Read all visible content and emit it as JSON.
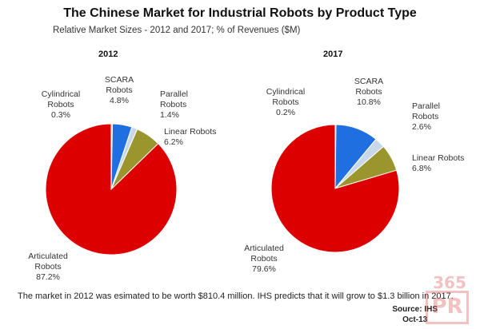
{
  "chart_data": {
    "type": "pie",
    "title": "The Chinese Market for Industrial Robots by Product Type",
    "subtitle": "Relative Market Sizes - 2012 and 2017; % of Revenues ($M)",
    "charts": [
      {
        "year": "2012",
        "slices": [
          {
            "name": "Cylindrical Robots",
            "value": 0.3,
            "label_lines": [
              "Cylindrical",
              "Robots",
              "0.3%"
            ],
            "color": "#c8d8e8"
          },
          {
            "name": "SCARA Robots",
            "value": 4.8,
            "label_lines": [
              "SCARA",
              "Robots",
              "4.8%"
            ],
            "color": "#1f6fe0"
          },
          {
            "name": "Parallel Robots",
            "value": 1.4,
            "label_lines": [
              "Parallel",
              "Robots",
              "1.4%"
            ],
            "color": "#c8d8e8"
          },
          {
            "name": "Linear Robots",
            "value": 6.2,
            "label_lines": [
              "Linear Robots",
              "6.2%"
            ],
            "color": "#9a962d"
          },
          {
            "name": "Articulated Robots",
            "value": 87.2,
            "label_lines": [
              "Articulated",
              "Robots",
              "87.2%"
            ],
            "color": "#dd0000"
          }
        ]
      },
      {
        "year": "2017",
        "slices": [
          {
            "name": "Cylindrical Robots",
            "value": 0.2,
            "label_lines": [
              "Cylindrical",
              "Robots",
              "0.2%"
            ],
            "color": "#c8d8e8"
          },
          {
            "name": "SCARA Robots",
            "value": 10.8,
            "label_lines": [
              "SCARA",
              "Robots",
              "10.8%"
            ],
            "color": "#1f6fe0"
          },
          {
            "name": "Parallel Robots",
            "value": 2.6,
            "label_lines": [
              "Parallel",
              "Robots",
              "2.6%"
            ],
            "color": "#c8d8e8"
          },
          {
            "name": "Linear Robots",
            "value": 6.8,
            "label_lines": [
              "Linear Robots",
              "6.8%"
            ],
            "color": "#9a962d"
          },
          {
            "name": "Articulated Robots",
            "value": 79.6,
            "label_lines": [
              "Articulated",
              "Robots",
              "79.6%"
            ],
            "color": "#dd0000"
          }
        ]
      }
    ]
  },
  "footer": {
    "note": "The market in 2012 was esimated to be worth $810.4 million. IHS predicts that it will grow to $1.3 billion in 2017.",
    "source": "Source: IHS",
    "date": "Oct-13"
  },
  "watermark": {
    "line1": "365",
    "line2": "PR"
  }
}
